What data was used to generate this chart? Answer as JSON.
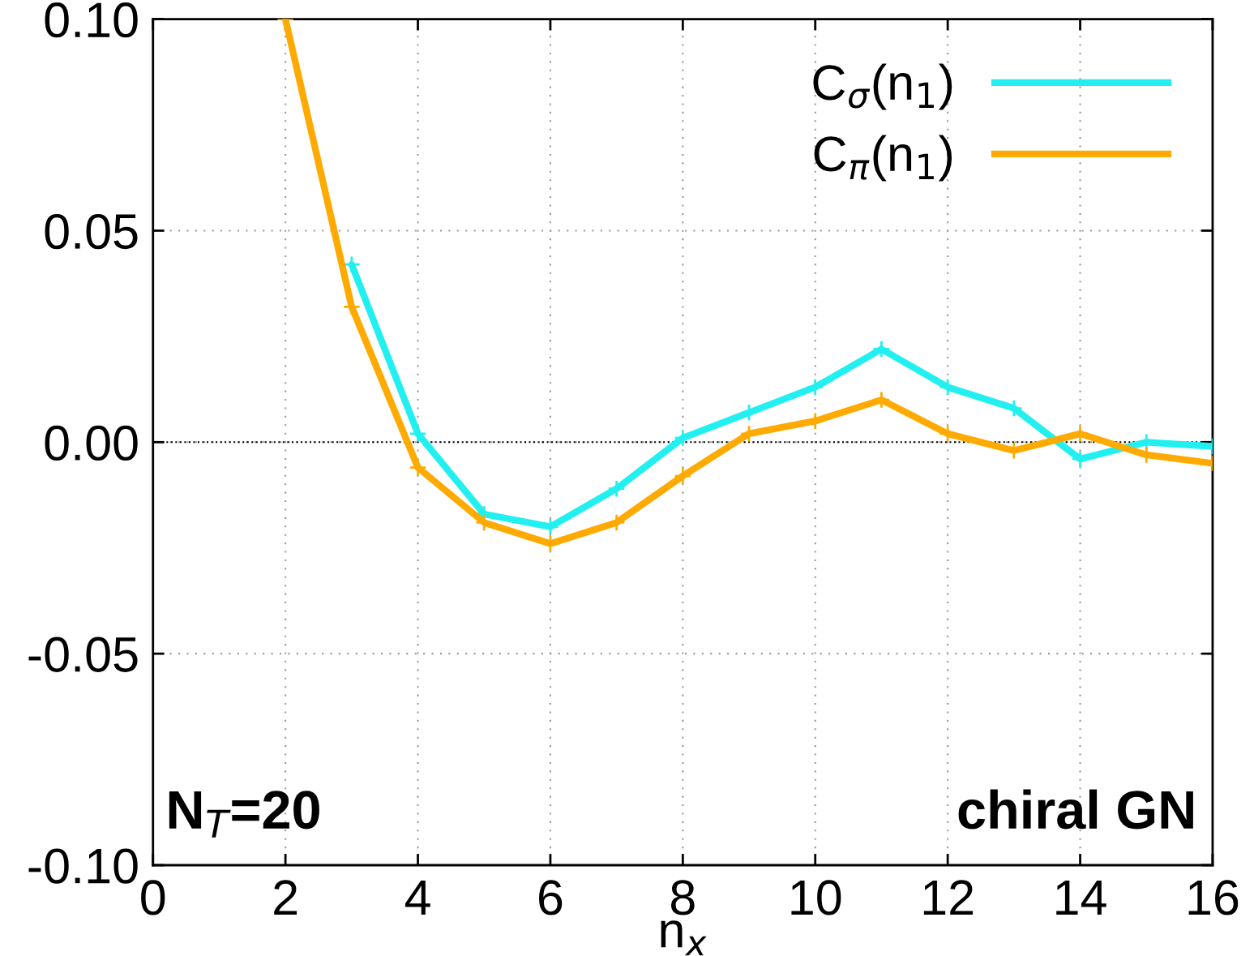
{
  "chart_data": {
    "type": "line",
    "xlabel": "n$_{x}$",
    "x": [
      2,
      3,
      4,
      5,
      6,
      7,
      8,
      9,
      10,
      11,
      12,
      13,
      14,
      15,
      16
    ],
    "series": [
      {
        "name": "C$_{σ}$(n$_{1}$)",
        "color": "#22f0f0",
        "values": [
          null,
          0.042,
          0.002,
          -0.017,
          -0.02,
          -0.011,
          0.001,
          0.007,
          0.013,
          0.022,
          0.013,
          0.008,
          -0.004,
          0.0,
          -0.001
        ]
      },
      {
        "name": "C$_{π}$(n$_{1}$)",
        "color": "#ffaa00",
        "values": [
          0.1,
          0.032,
          -0.006,
          -0.019,
          -0.024,
          -0.019,
          -0.008,
          0.002,
          0.005,
          0.01,
          0.002,
          -0.002,
          0.002,
          -0.003,
          -0.005
        ]
      }
    ],
    "xlim": [
      0,
      16
    ],
    "xticks": [
      0,
      2,
      4,
      6,
      8,
      10,
      12,
      14,
      16
    ],
    "ylim": [
      -0.1,
      0.1
    ],
    "yticks": [
      {
        "value": -0.1,
        "label": "-0.10"
      },
      {
        "value": -0.05,
        "label": "-0.05"
      },
      {
        "value": 0,
        "label": "0.00"
      },
      {
        "value": 0.05,
        "label": "0.05"
      },
      {
        "value": 0.1,
        "label": "0.10"
      }
    ],
    "ref_lines": [
      {
        "axis": "y",
        "value": 0,
        "color": "#000000",
        "line_style": "dotted"
      }
    ],
    "annotations": [
      "N$_{T}$=20",
      "chiral GN"
    ],
    "grid": true,
    "legend": "top right",
    "marker": "cross",
    "line_style": "solid"
  }
}
